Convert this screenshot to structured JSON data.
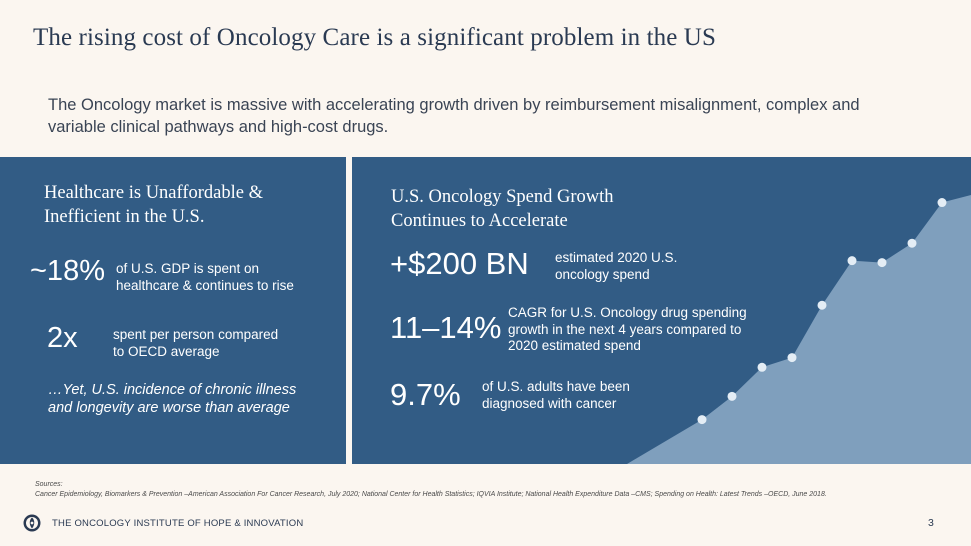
{
  "title": "The rising cost of Oncology Care is a significant problem in the US",
  "subtitle": "The Oncology market is massive with accelerating growth driven by reimbursement misalignment, complex and variable clinical pathways and high-cost drugs.",
  "left_panel": {
    "heading_line1": "Healthcare is Unaffordable &",
    "heading_line2": "Inefficient in the U.S.",
    "stat1_value": "~18%",
    "stat1_desc_line1": "of U.S. GDP is spent on",
    "stat1_desc_line2": "healthcare & continues to rise",
    "stat2_value": "2x",
    "stat2_desc_line1": "spent per person compared",
    "stat2_desc_line2": "to OECD average",
    "note_line1": "…Yet, U.S. incidence of chronic illness",
    "note_line2": "and longevity are worse than average"
  },
  "right_panel": {
    "heading_line1": "U.S. Oncology Spend Growth",
    "heading_line2": "Continues to Accelerate",
    "stat1_value": "+$200 BN",
    "stat1_desc_line1": "estimated 2020 U.S.",
    "stat1_desc_line2": "oncology spend",
    "stat2_value": "11–14%",
    "stat2_desc_line1": "CAGR for U.S. Oncology drug spending",
    "stat2_desc_line2": "growth in the next 4 years compared to",
    "stat2_desc_line3": "2020 estimated spend",
    "stat3_value": "9.7%",
    "stat3_desc_line1": "of U.S. adults have been",
    "stat3_desc_line2": "diagnosed with cancer"
  },
  "growth_chart": {
    "type": "area",
    "values": [
      1.0,
      2.2,
      3.7,
      4.2,
      6.9,
      9.2,
      9.1,
      10.1,
      12.2
    ],
    "ylim": [
      0,
      13
    ],
    "fill_color": "#7f9fbd",
    "point_color": "#e4edf5"
  },
  "sources_label": "Sources:",
  "sources_text": "Cancer Epidemiology, Biomarkers & Prevention –American Association For Cancer Research, July 2020; National Center for Health Statistics; IQVIA Institute; National Health Expenditure Data –CMS; Spending on Health: Latest Trends –OECD, June 2018.",
  "footer": {
    "org": "THE ONCOLOGY INSTITUTE OF HOPE & INNOVATION",
    "page_number": "3"
  },
  "colors": {
    "panel": "#325c85",
    "background": "#fbf6f0",
    "title": "#2a3a52"
  }
}
